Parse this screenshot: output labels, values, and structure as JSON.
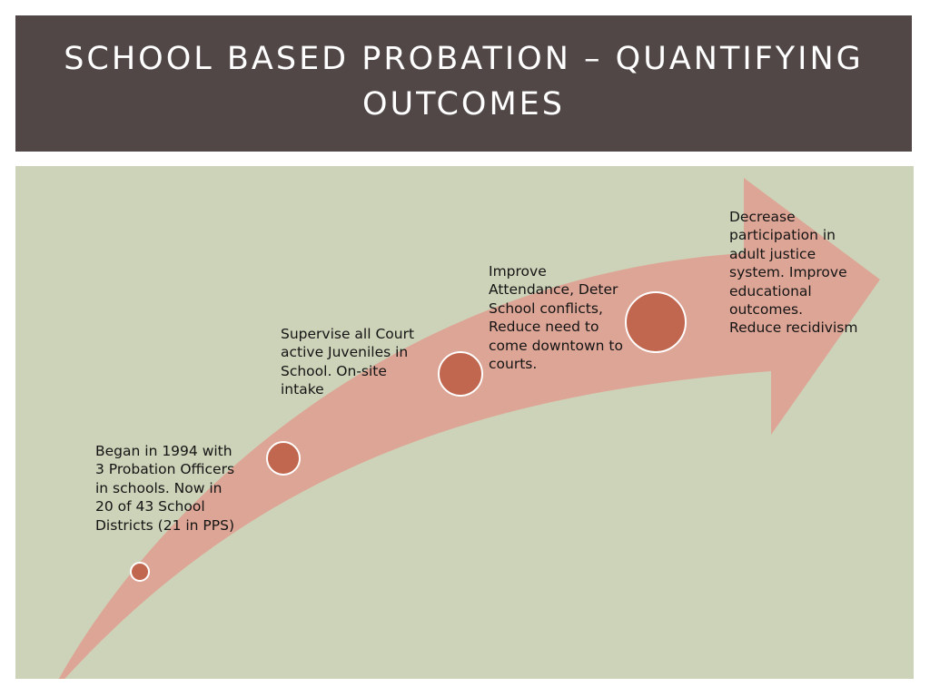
{
  "slide": {
    "title": "SCHOOL BASED PROBATION – QUANTIFYING OUTCOMES"
  },
  "colors": {
    "title_bar": "#514747",
    "content_background": "#cdd3b9",
    "arrow": "#dda596",
    "milestone": "#c2674f",
    "milestone_ring": "#ffffff"
  },
  "milestones": [
    {
      "text": "Began in 1994 with\n3 Probation Officers\nin schools.  Now in\n20 of 43 School\nDistricts (21 in PPS)"
    },
    {
      "text": "Supervise all Court\nactive Juveniles in\nSchool.  On-site\nintake"
    },
    {
      "text": "Improve\nAttendance, Deter\nSchool conflicts,\nReduce need to\ncome downtown to\ncourts."
    },
    {
      "text": "Decrease\nparticipation in\nadult justice\nsystem.  Improve\neducational\noutcomes.\nReduce recidivism"
    }
  ]
}
